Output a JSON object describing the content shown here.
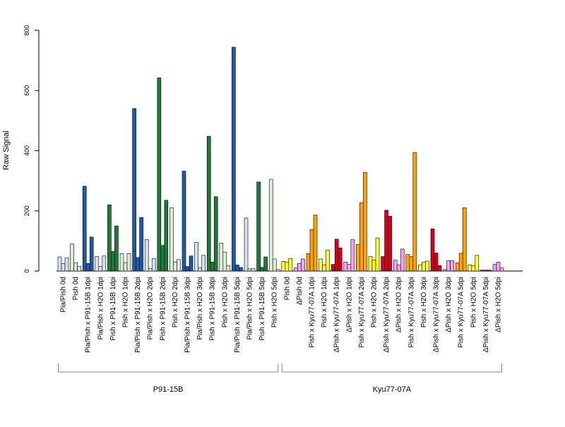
{
  "chart_data": {
    "type": "bar",
    "title": "",
    "xlabel": "",
    "ylabel": "Raw Signal",
    "ylim": [
      0,
      800
    ],
    "yticks": [
      0,
      200,
      400,
      600,
      800
    ],
    "grid": false,
    "legend": "none",
    "categories": [
      "Pia/Pish 0d",
      "Pish 0d",
      "Pia/Pish x P91-15B 1dpi",
      "Pia/Pish x H2O 1dpi",
      "Pish x P91-15B 1dpi",
      "Pish x H2O 1dpi",
      "Pia/Pish x P91-15B 2dpi",
      "Pia/Pish x H2O 2dpi",
      "Pish x P91-15B 2dpi",
      "Pish x H2O 2dpi",
      "Pia/Pish x P91-15B 3dpi",
      "Pia/Pish x H2O 3dpi",
      "Pish x P91-15B 3dpi",
      "Pish x H2O 3dpi",
      "Pia/Pish x P91-15B 5dpi",
      "Pia/Pish x H2O 5dpi",
      "Pish x P91-15B 5dpi",
      "Pish x H2O 5dpi",
      "Pish 0d",
      "ΔPish 0d",
      "Pish x Kyu77-07A 1dpi",
      "Pish x H2O 1dpi",
      "ΔPish x Kyu77-07A 1dpi",
      "ΔPish x H2O 1dpi",
      "Pish x Kyu77-07A 2dpi",
      "Pish x H2O 2dpi",
      "ΔPish x Kyu77-07A 2dpi",
      "ΔPish x H2O 2dpi",
      "Pish x Kyu77-07A 3dpi",
      "Pish x H2O 3dpi",
      "ΔPish x Kyu77-07A 3dpi",
      "ΔPish x H2O 3dpi",
      "Pish x Kyu77-07A 5dpi",
      "Pish x H2O 5dpi",
      "ΔPish x Kyu77-07A 5dpi",
      "ΔPish x H2O 5dpi"
    ],
    "bars_per_category": 3,
    "colors": [
      "#d3e3f1",
      "#dcefd6",
      "#1f5aa6",
      "#d3e3f1",
      "#1f7a3a",
      "#dcefd6",
      "#1f5aa6",
      "#d3e3f1",
      "#1f7a3a",
      "#dcefd6",
      "#1f5aa6",
      "#d3e3f1",
      "#1f7a3a",
      "#dcefd6",
      "#1f5aa6",
      "#d3e3f1",
      "#1f7a3a",
      "#dcefd6",
      "#ffff33",
      "#f5a3f0",
      "#ffa500",
      "#ffff33",
      "#d7001a",
      "#f5a3f0",
      "#ffa500",
      "#ffff33",
      "#d7001a",
      "#f5a3f0",
      "#ffa500",
      "#ffff33",
      "#d7001a",
      "#f5a3f0",
      "#ffa500",
      "#ffff33",
      "#d7001a",
      "#f5a3f0"
    ],
    "values": [
      [
        47,
        25,
        43
      ],
      [
        90,
        28,
        15
      ],
      [
        282,
        25,
        113
      ],
      [
        48,
        15,
        50
      ],
      [
        220,
        65,
        150
      ],
      [
        58,
        28,
        58
      ],
      [
        540,
        45,
        178
      ],
      [
        105,
        8,
        42
      ],
      [
        642,
        85,
        235
      ],
      [
        210,
        30,
        38
      ],
      [
        332,
        15,
        50
      ],
      [
        95,
        10,
        52
      ],
      [
        448,
        30,
        247
      ],
      [
        93,
        63,
        18
      ],
      [
        744,
        20,
        12
      ],
      [
        176,
        7,
        8
      ],
      [
        296,
        12,
        47
      ],
      [
        305,
        40,
        5
      ],
      [
        32,
        30,
        42
      ],
      [
        10,
        25,
        40
      ],
      [
        58,
        138,
        186
      ],
      [
        40,
        20,
        70
      ],
      [
        22,
        106,
        77
      ],
      [
        30,
        22,
        104
      ],
      [
        88,
        227,
        328
      ],
      [
        48,
        37,
        110
      ],
      [
        48,
        202,
        182
      ],
      [
        36,
        20,
        73
      ],
      [
        55,
        48,
        394
      ],
      [
        20,
        30,
        33
      ],
      [
        140,
        60,
        18
      ],
      [
        5,
        34,
        34
      ],
      [
        27,
        59,
        210
      ],
      [
        20,
        18,
        52
      ],
      [
        3,
        3,
        3
      ],
      [
        22,
        30,
        10
      ]
    ],
    "groups": [
      {
        "label": "P91-15B",
        "first": 0,
        "last": 17
      },
      {
        "label": "Kyu77-07A",
        "first": 18,
        "last": 35
      }
    ]
  }
}
